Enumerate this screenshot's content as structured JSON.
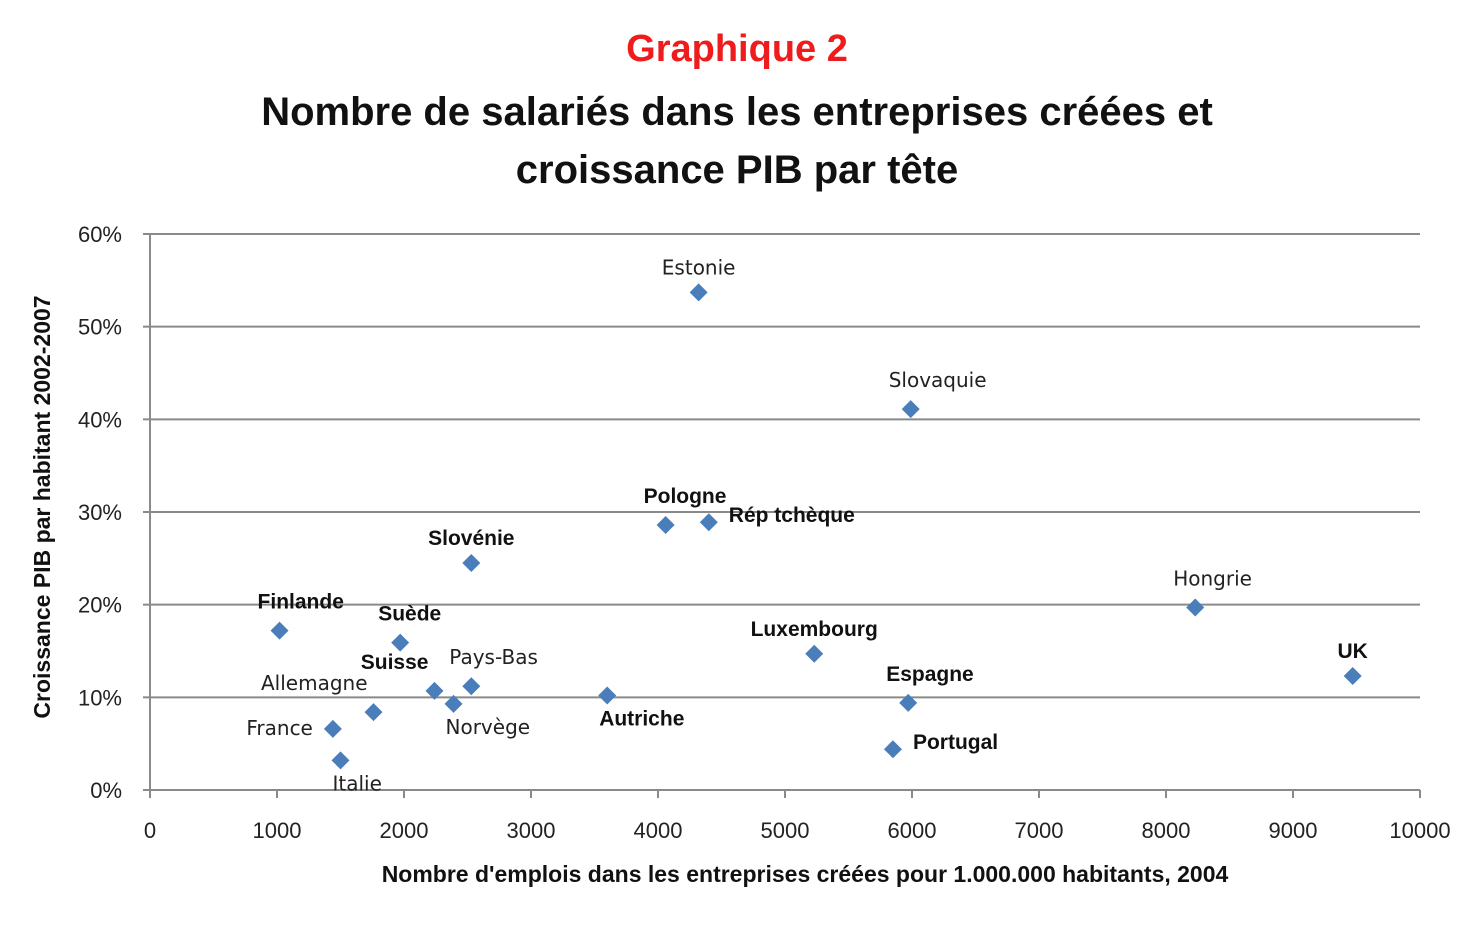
{
  "chart_data": {
    "type": "scatter",
    "kicker": "Graphique 2",
    "title_line1": "Nombre de salariés dans les entreprises créées et",
    "title_line2": "croissance PIB par tête",
    "xlabel": "Nombre d'emplois dans les entreprises créées pour 1.000.000 habitants, 2004",
    "ylabel": "Croissance PIB par habitant 2002-2007",
    "xlim": [
      0,
      10000
    ],
    "ylim": [
      0,
      60
    ],
    "x_ticks": [
      0,
      1000,
      2000,
      3000,
      4000,
      5000,
      6000,
      7000,
      8000,
      9000,
      10000
    ],
    "y_ticks": [
      0,
      10,
      20,
      30,
      40,
      50,
      60
    ],
    "y_tick_labels": [
      "0%",
      "10%",
      "20%",
      "30%",
      "40%",
      "50%",
      "60%"
    ],
    "grid": true,
    "marker_color": "#4a7ebb",
    "kicker_color": "#ee1c1c",
    "points": [
      {
        "label": "Estonie",
        "x": 4320,
        "y": 53.7,
        "pos": "above",
        "bold": false
      },
      {
        "label": "Slovaquie",
        "x": 5990,
        "y": 41.1,
        "pos": "above-right",
        "bold": false
      },
      {
        "label": "Pologne",
        "x": 4060,
        "y": 28.6,
        "pos": "above-right",
        "bold": true
      },
      {
        "label": "Rép tchèque",
        "x": 4400,
        "y": 28.9,
        "pos": "right",
        "bold": true
      },
      {
        "label": "Slovénie",
        "x": 2530,
        "y": 24.5,
        "pos": "above",
        "bold": true
      },
      {
        "label": "Finlande",
        "x": 1020,
        "y": 17.2,
        "pos": "above-right",
        "bold": true
      },
      {
        "label": "Suède",
        "x": 1970,
        "y": 15.9,
        "pos": "above-right",
        "bold": true
      },
      {
        "label": "Hongrie",
        "x": 8230,
        "y": 19.7,
        "pos": "above-right",
        "bold": false
      },
      {
        "label": "UK",
        "x": 9470,
        "y": 12.3,
        "pos": "above",
        "bold": true
      },
      {
        "label": "Luxembourg",
        "x": 5230,
        "y": 14.7,
        "pos": "above",
        "bold": true
      },
      {
        "label": "Espagne",
        "x": 5970,
        "y": 9.4,
        "pos": "above-right",
        "bold": true
      },
      {
        "label": "Portugal",
        "x": 5850,
        "y": 4.4,
        "pos": "right",
        "bold": true
      },
      {
        "label": "Autriche",
        "x": 3600,
        "y": 10.2,
        "pos": "below-right",
        "bold": true
      },
      {
        "label": "Suisse",
        "x": 2240,
        "y": 10.7,
        "pos": "above-left",
        "bold": true
      },
      {
        "label": "Pays-Bas",
        "x": 2530,
        "y": 11.2,
        "pos": "above-right",
        "bold": false
      },
      {
        "label": "Norvège",
        "x": 2390,
        "y": 9.3,
        "pos": "below-right",
        "bold": false
      },
      {
        "label": "Allemagne",
        "x": 1760,
        "y": 8.4,
        "pos": "above-left",
        "bold": false
      },
      {
        "label": "France",
        "x": 1440,
        "y": 6.6,
        "pos": "left",
        "bold": false
      },
      {
        "label": "Italie",
        "x": 1500,
        "y": 3.2,
        "pos": "below-right",
        "bold": false
      }
    ]
  }
}
